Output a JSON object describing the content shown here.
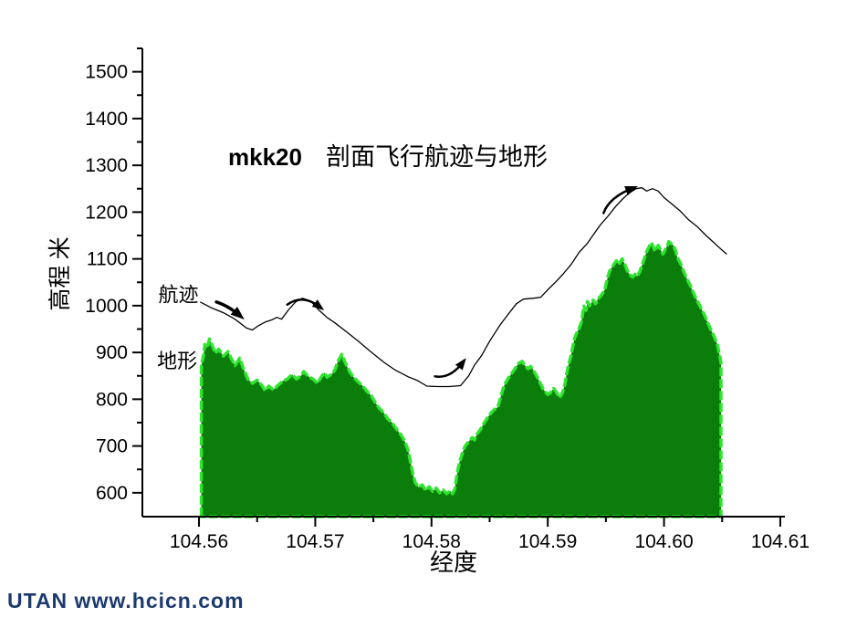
{
  "page": {
    "background": "#ffffff"
  },
  "watermark": {
    "text": "UTAN  www.hcicn.com",
    "color": "#1c3a6e"
  },
  "chart_data": {
    "type": "area",
    "title": {
      "prefix": "mkk20",
      "text": "剖面飞行航迹与地形"
    },
    "xlabel": "经度",
    "ylabel": "高程 米",
    "xlim": [
      104.55513,
      104.61024
    ],
    "ylim": [
      549,
      1550
    ],
    "grid": false,
    "axis_color": "#000000",
    "x_major_ticks": [
      104.56,
      104.57,
      104.58,
      104.59,
      104.6,
      104.61
    ],
    "x_tick_labels": [
      "104.56",
      "104.57",
      "104.58",
      "104.59",
      "104.60",
      "104.61"
    ],
    "x_minor_ticks": [
      104.565,
      104.575,
      104.585,
      104.595,
      104.605
    ],
    "y_major_ticks": [
      600,
      700,
      800,
      900,
      1000,
      1100,
      1200,
      1300,
      1400,
      1500
    ],
    "y_minor_ticks": [
      650,
      750,
      850,
      950,
      1050,
      1150,
      1250,
      1350,
      1450,
      1550
    ],
    "series": [
      {
        "name": "地形",
        "type": "area",
        "fill": "#0b7d0b",
        "stroke": "#2ee52e",
        "stroke_width": 3.5,
        "stroke_dash": "10 3",
        "baseline": 549,
        "points": [
          [
            104.5602,
            872
          ],
          [
            104.5604,
            895
          ],
          [
            104.5605,
            917
          ],
          [
            104.5607,
            910
          ],
          [
            104.5609,
            929
          ],
          [
            104.5612,
            911
          ],
          [
            104.5614,
            898
          ],
          [
            104.5617,
            907
          ],
          [
            104.5621,
            892
          ],
          [
            104.5625,
            902
          ],
          [
            104.5628,
            886
          ],
          [
            104.5631,
            872
          ],
          [
            104.5635,
            888
          ],
          [
            104.5638,
            867
          ],
          [
            104.5642,
            843
          ],
          [
            104.5646,
            834
          ],
          [
            104.565,
            841
          ],
          [
            104.5654,
            830
          ],
          [
            104.5657,
            818
          ],
          [
            104.566,
            828
          ],
          [
            104.5664,
            820
          ],
          [
            104.5668,
            830
          ],
          [
            104.5672,
            839
          ],
          [
            104.5676,
            843
          ],
          [
            104.568,
            853
          ],
          [
            104.5684,
            843
          ],
          [
            104.5688,
            851
          ],
          [
            104.569,
            859
          ],
          [
            104.5694,
            849
          ],
          [
            104.5698,
            843
          ],
          [
            104.5702,
            834
          ],
          [
            104.5705,
            847
          ],
          [
            104.5708,
            857
          ],
          [
            104.571,
            847
          ],
          [
            104.5714,
            853
          ],
          [
            104.5717,
            863
          ],
          [
            104.5719,
            878
          ],
          [
            104.5721,
            888
          ],
          [
            104.5723,
            896
          ],
          [
            104.5725,
            882
          ],
          [
            104.5727,
            872
          ],
          [
            104.573,
            857
          ],
          [
            104.5733,
            847
          ],
          [
            104.5737,
            837
          ],
          [
            104.5741,
            828
          ],
          [
            104.5744,
            818
          ],
          [
            104.5748,
            808
          ],
          [
            104.5751,
            795
          ],
          [
            104.5755,
            781
          ],
          [
            104.5759,
            771
          ],
          [
            104.5762,
            759
          ],
          [
            104.5766,
            750
          ],
          [
            104.577,
            736
          ],
          [
            104.5774,
            723
          ],
          [
            104.5777,
            710
          ],
          [
            104.578,
            690
          ],
          [
            104.5782,
            665
          ],
          [
            104.5784,
            640
          ],
          [
            104.5786,
            622
          ],
          [
            104.5789,
            612
          ],
          [
            104.5792,
            617
          ],
          [
            104.5795,
            605
          ],
          [
            104.5798,
            613
          ],
          [
            104.5801,
            603
          ],
          [
            104.5804,
            610
          ],
          [
            104.5807,
            600
          ],
          [
            104.581,
            606
          ],
          [
            104.5813,
            598
          ],
          [
            104.5816,
            604
          ],
          [
            104.5818,
            598
          ],
          [
            104.582,
            608
          ],
          [
            104.5822,
            640
          ],
          [
            104.5824,
            665
          ],
          [
            104.5827,
            688
          ],
          [
            104.5829,
            700
          ],
          [
            104.5832,
            710
          ],
          [
            104.5835,
            718
          ],
          [
            104.5837,
            713
          ],
          [
            104.5839,
            725
          ],
          [
            104.5842,
            735
          ],
          [
            104.5845,
            748
          ],
          [
            104.5848,
            760
          ],
          [
            104.5851,
            770
          ],
          [
            104.5854,
            778
          ],
          [
            104.5857,
            783
          ],
          [
            104.5859,
            800
          ],
          [
            104.5861,
            818
          ],
          [
            104.5863,
            832
          ],
          [
            104.5866,
            845
          ],
          [
            104.5868,
            852
          ],
          [
            104.5871,
            862
          ],
          [
            104.5873,
            870
          ],
          [
            104.5875,
            877
          ],
          [
            104.5878,
            881
          ],
          [
            104.588,
            873
          ],
          [
            104.5883,
            865
          ],
          [
            104.5885,
            870
          ],
          [
            104.5887,
            865
          ],
          [
            104.589,
            852
          ],
          [
            104.5892,
            842
          ],
          [
            104.5894,
            832
          ],
          [
            104.5896,
            822
          ],
          [
            104.5898,
            816
          ],
          [
            104.59,
            810
          ],
          [
            104.5902,
            813
          ],
          [
            104.5905,
            823
          ],
          [
            104.5907,
            817
          ],
          [
            104.591,
            803
          ],
          [
            104.5912,
            810
          ],
          [
            104.5913,
            816
          ],
          [
            104.5915,
            835
          ],
          [
            104.5916,
            852
          ],
          [
            104.5918,
            875
          ],
          [
            104.592,
            893
          ],
          [
            104.5921,
            906
          ],
          [
            104.5923,
            930
          ],
          [
            104.5925,
            942
          ],
          [
            104.5927,
            952
          ],
          [
            104.5929,
            965
          ],
          [
            104.5931,
            999
          ],
          [
            104.5933,
            990
          ],
          [
            104.5934,
            1009
          ],
          [
            104.5936,
            1000
          ],
          [
            104.5939,
            1012
          ],
          [
            104.5941,
            1004
          ],
          [
            104.5943,
            1014
          ],
          [
            104.5946,
            1022
          ],
          [
            104.5949,
            1034
          ],
          [
            104.5951,
            1055
          ],
          [
            104.5953,
            1073
          ],
          [
            104.5956,
            1085
          ],
          [
            104.5959,
            1096
          ],
          [
            104.5961,
            1088
          ],
          [
            104.5964,
            1100
          ],
          [
            104.5966,
            1090
          ],
          [
            104.5968,
            1077
          ],
          [
            104.597,
            1068
          ],
          [
            104.5973,
            1061
          ],
          [
            104.5975,
            1067
          ],
          [
            104.5977,
            1063
          ],
          [
            104.5979,
            1072
          ],
          [
            104.5981,
            1086
          ],
          [
            104.5983,
            1100
          ],
          [
            104.5985,
            1116
          ],
          [
            104.5987,
            1125
          ],
          [
            104.5989,
            1135
          ],
          [
            104.5991,
            1125
          ],
          [
            104.5992,
            1116
          ],
          [
            104.5995,
            1129
          ],
          [
            104.5997,
            1120
          ],
          [
            104.5999,
            1110
          ],
          [
            104.6001,
            1120
          ],
          [
            104.6003,
            1129
          ],
          [
            104.6004,
            1137
          ],
          [
            104.6006,
            1133
          ],
          [
            104.6008,
            1129
          ],
          [
            104.601,
            1117
          ],
          [
            104.6011,
            1106
          ],
          [
            104.6013,
            1096
          ],
          [
            104.6015,
            1086
          ],
          [
            104.6017,
            1073
          ],
          [
            104.6019,
            1061
          ],
          [
            104.6021,
            1051
          ],
          [
            104.6023,
            1041
          ],
          [
            104.6025,
            1029
          ],
          [
            104.6027,
            1018
          ],
          [
            104.6029,
            1008
          ],
          [
            104.6031,
            999
          ],
          [
            104.6033,
            989
          ],
          [
            104.6035,
            979
          ],
          [
            104.6037,
            967
          ],
          [
            104.6039,
            956
          ],
          [
            104.6041,
            945
          ],
          [
            104.6043,
            935
          ],
          [
            104.6045,
            922
          ],
          [
            104.6046,
            915
          ],
          [
            104.6048,
            892
          ],
          [
            104.6049,
            878
          ]
        ]
      },
      {
        "name": "航迹",
        "type": "line",
        "stroke": "#000000",
        "stroke_width": 1.3,
        "points": [
          [
            104.5601,
            1008
          ],
          [
            104.5611,
            995
          ],
          [
            104.5621,
            985
          ],
          [
            104.5631,
            971
          ],
          [
            104.5641,
            952
          ],
          [
            104.5646,
            948
          ],
          [
            104.5651,
            957
          ],
          [
            104.5657,
            965
          ],
          [
            104.5662,
            969
          ],
          [
            104.5667,
            975
          ],
          [
            104.5671,
            971
          ],
          [
            104.5677,
            991
          ],
          [
            104.5683,
            1008
          ],
          [
            104.5689,
            1016
          ],
          [
            104.5696,
            1010
          ],
          [
            104.5703,
            991
          ],
          [
            104.571,
            975
          ],
          [
            104.5717,
            963
          ],
          [
            104.5727,
            944
          ],
          [
            104.5737,
            924
          ],
          [
            104.5748,
            901
          ],
          [
            104.5759,
            879
          ],
          [
            104.5769,
            862
          ],
          [
            104.578,
            848
          ],
          [
            104.5788,
            840
          ],
          [
            104.5796,
            828
          ],
          [
            104.5806,
            827
          ],
          [
            104.5815,
            827
          ],
          [
            104.5825,
            829
          ],
          [
            104.5832,
            850
          ],
          [
            104.5837,
            873
          ],
          [
            104.5843,
            893
          ],
          [
            104.585,
            924
          ],
          [
            104.5859,
            959
          ],
          [
            104.5867,
            985
          ],
          [
            104.5873,
            1004
          ],
          [
            104.5879,
            1014
          ],
          [
            104.5888,
            1016
          ],
          [
            104.5894,
            1018
          ],
          [
            104.59,
            1034
          ],
          [
            104.5907,
            1051
          ],
          [
            104.5913,
            1067
          ],
          [
            104.592,
            1088
          ],
          [
            104.5927,
            1114
          ],
          [
            104.5934,
            1133
          ],
          [
            104.5939,
            1151
          ],
          [
            104.5945,
            1172
          ],
          [
            104.5952,
            1192
          ],
          [
            104.5958,
            1211
          ],
          [
            104.5964,
            1227
          ],
          [
            104.597,
            1241
          ],
          [
            104.5976,
            1250
          ],
          [
            104.5981,
            1252
          ],
          [
            104.5985,
            1245
          ],
          [
            104.599,
            1250
          ],
          [
            104.5995,
            1245
          ],
          [
            104.6,
            1231
          ],
          [
            104.6007,
            1217
          ],
          [
            104.6014,
            1202
          ],
          [
            104.6021,
            1184
          ],
          [
            104.6029,
            1168
          ],
          [
            104.6035,
            1153
          ],
          [
            104.6041,
            1139
          ],
          [
            104.6048,
            1123
          ],
          [
            104.6054,
            1110
          ]
        ]
      }
    ],
    "labels": [
      {
        "text": "航迹",
        "x": 104.5565,
        "y": 1024,
        "anchor": "start"
      },
      {
        "text": "地形",
        "x": 104.5564,
        "y": 883,
        "anchor": "start"
      }
    ],
    "arrows": [
      {
        "pts": [
          [
            104.5615,
            1008
          ],
          [
            104.5625,
            1000
          ],
          [
            104.5635,
            979
          ]
        ],
        "width": 3.5,
        "head": 15
      },
      {
        "pts": [
          [
            104.5676,
            1002
          ],
          [
            104.5689,
            1026
          ],
          [
            104.5704,
            997
          ]
        ],
        "width": 2.5,
        "head": 13
      },
      {
        "pts": [
          [
            104.5803,
            849
          ],
          [
            104.5816,
            843
          ],
          [
            104.5827,
            879
          ]
        ],
        "width": 2.5,
        "head": 13
      },
      {
        "pts": [
          [
            104.5948,
            1198
          ],
          [
            104.5953,
            1232
          ],
          [
            104.5973,
            1251
          ]
        ],
        "width": 2.5,
        "head": 14
      }
    ]
  }
}
